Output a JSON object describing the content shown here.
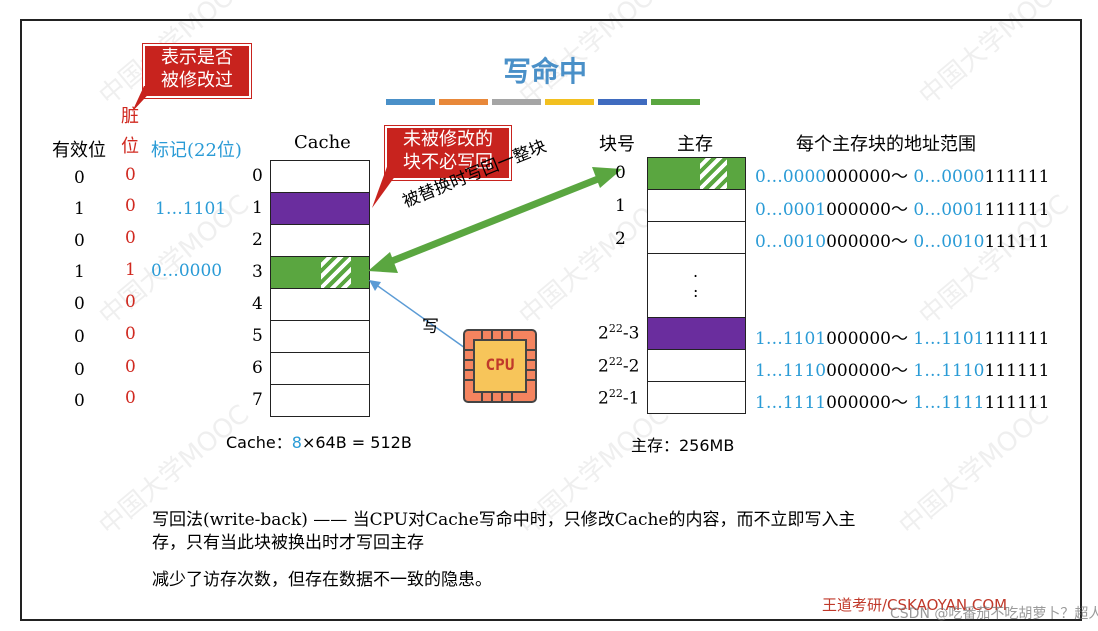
{
  "title": "写命中",
  "stripe_colors": [
    "#4a90c8",
    "#e8883a",
    "#a5a5a5",
    "#f2c020",
    "#3f6bbf",
    "#5aa640"
  ],
  "callouts": {
    "dirty_meaning": [
      "表示是否",
      "被修改过"
    ],
    "no_writeback": [
      "未被修改的",
      "块不必写回"
    ]
  },
  "cache_table": {
    "valid_header": "有效位",
    "dirty_header_top": "脏",
    "dirty_header_bottom": "位",
    "tag_header": "标记(22位)",
    "cache_header": "Cache",
    "rows": [
      {
        "valid": "0",
        "dirty": "0",
        "tag": "",
        "index": "0"
      },
      {
        "valid": "1",
        "dirty": "0",
        "tag": "1…1101",
        "index": "1"
      },
      {
        "valid": "0",
        "dirty": "0",
        "tag": "",
        "index": "2"
      },
      {
        "valid": "1",
        "dirty": "1",
        "tag": "0…0000",
        "index": "3"
      },
      {
        "valid": "0",
        "dirty": "0",
        "tag": "",
        "index": "4"
      },
      {
        "valid": "0",
        "dirty": "0",
        "tag": "",
        "index": "5"
      },
      {
        "valid": "0",
        "dirty": "0",
        "tag": "",
        "index": "6"
      },
      {
        "valid": "0",
        "dirty": "0",
        "tag": "",
        "index": "7"
      }
    ],
    "caption_prefix": "Cache：",
    "caption_count": "8",
    "caption_rest": "×64B = 512B"
  },
  "arrow_label": "被替换时写回一整块",
  "write_label": "写",
  "cpu_label": "CPU",
  "memory": {
    "block_header": "块号",
    "mem_header": "主存",
    "range_header": "每个主存块的地址范围",
    "block_nums": [
      "0",
      "1",
      "2"
    ],
    "dots": [
      ".",
      ":"
    ],
    "bottom_blocks": [
      {
        "base": "2",
        "exp": "22",
        "suffix": "-3"
      },
      {
        "base": "2",
        "exp": "22",
        "suffix": "-2"
      },
      {
        "base": "2",
        "exp": "22",
        "suffix": "-1"
      }
    ],
    "ranges": [
      {
        "a_blue": "0…0000",
        "a_black": "000000",
        "sep": "～ ",
        "b_blue": "0…0000",
        "b_black": "111111"
      },
      {
        "a_blue": "0…0001",
        "a_black": "000000",
        "sep": "～ ",
        "b_blue": "0…0001",
        "b_black": "111111"
      },
      {
        "a_blue": "0…0010",
        "a_black": "000000",
        "sep": "～ ",
        "b_blue": "0…0010",
        "b_black": "111111"
      },
      {
        "a_blue": "1…1101",
        "a_black": "000000",
        "sep": "～ ",
        "b_blue": "1…1101",
        "b_black": "111111"
      },
      {
        "a_blue": "1…1110",
        "a_black": "000000",
        "sep": "～ ",
        "b_blue": "1…1110",
        "b_black": "111111"
      },
      {
        "a_blue": "1…1111",
        "a_black": "000000",
        "sep": "～ ",
        "b_blue": "1…1111",
        "b_black": "111111"
      }
    ],
    "caption": "主存：256MB"
  },
  "text": {
    "line1": "写回法(write-back) —— 当CPU对Cache写命中时，只修改Cache的内容，而不立即写入主",
    "line2": "存，只有当此块被换出时才写回主存",
    "line3": "减少了访存次数，但存在数据不一致的隐患。"
  },
  "brand": "王道考研/CSKAOYAN.COM",
  "credit": "CSDN @吃番茄不吃胡萝卜？超人",
  "watermark": "中国大学MOOC"
}
